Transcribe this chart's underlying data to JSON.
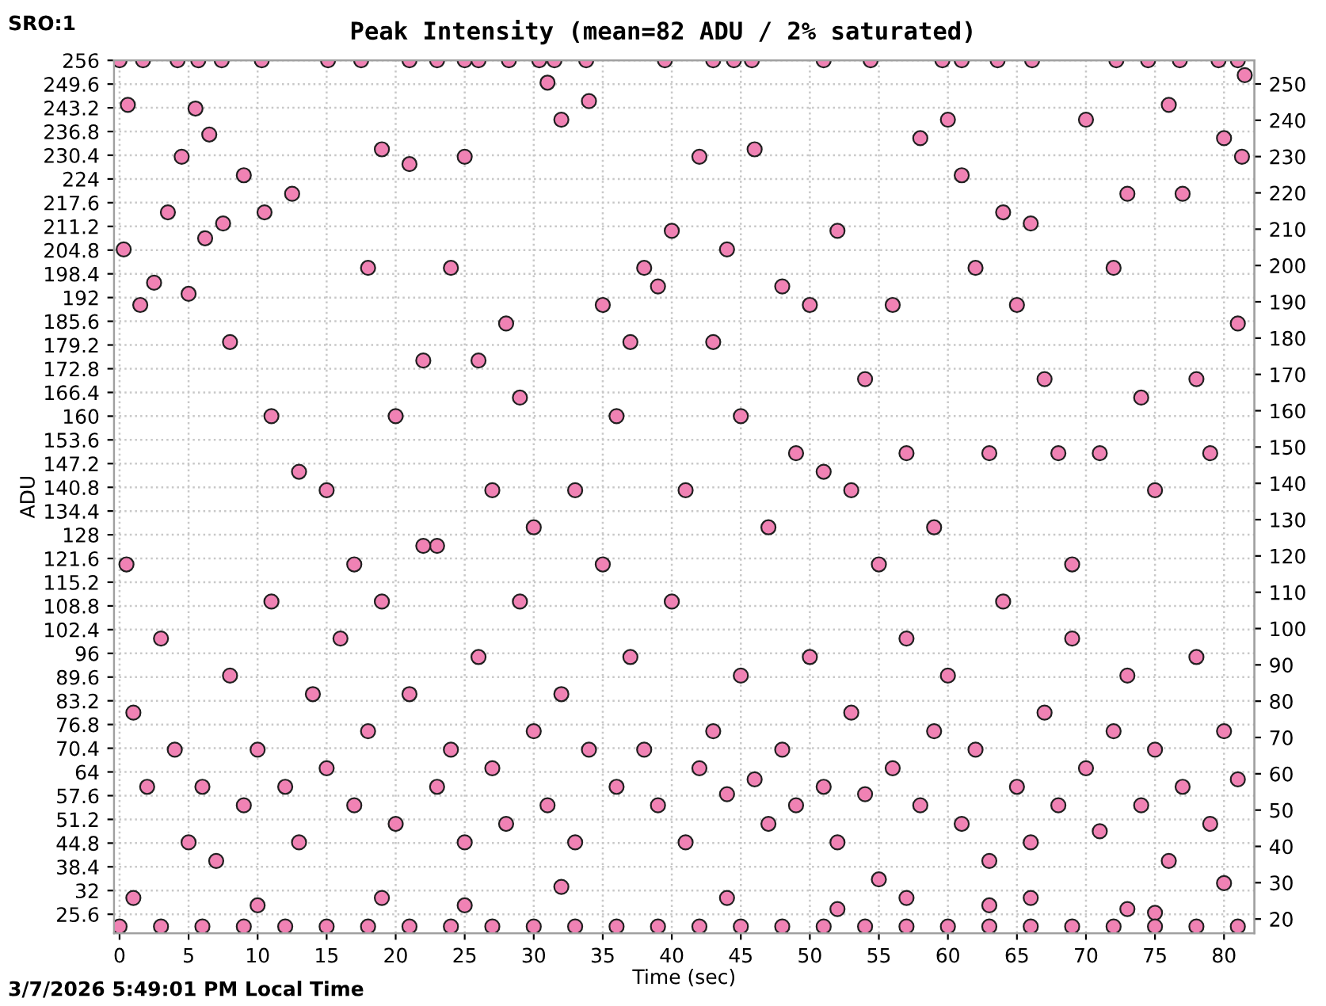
{
  "chart_data": {
    "type": "scatter",
    "title": "Peak Intensity (mean=82 ADU / 2% saturated)",
    "xlabel": "Time (sec)",
    "ylabel": "ADU",
    "annotations": [
      "SRO:1",
      "3/7/2026 5:49:01 PM Local Time"
    ],
    "xlim": [
      -0.4,
      82.2
    ],
    "xticks": [
      0,
      5,
      10,
      15,
      20,
      25,
      30,
      35,
      40,
      45,
      50,
      55,
      60,
      65,
      70,
      75,
      80
    ],
    "ylim": [
      20.5,
      256
    ],
    "yticks": [
      25.6,
      32,
      38.4,
      44.8,
      51.2,
      57.6,
      64,
      70.4,
      76.8,
      83.2,
      89.6,
      96,
      102.4,
      108.8,
      115.2,
      121.6,
      128,
      134.4,
      140.8,
      147.2,
      153.6,
      160,
      166.4,
      172.8,
      179.2,
      185.6,
      192,
      198.4,
      204.8,
      211.2,
      217.6,
      224,
      230.4,
      236.8,
      243.2,
      249.6,
      256
    ],
    "y2lim": [
      16.1,
      256.5
    ],
    "y2ticks": [
      20,
      30,
      40,
      50,
      60,
      70,
      80,
      90,
      100,
      110,
      120,
      130,
      140,
      150,
      160,
      170,
      180,
      190,
      200,
      210,
      220,
      230,
      240,
      250
    ],
    "grid": true,
    "marker": "circle",
    "series": [
      {
        "color": "#f082b4",
        "x": [
          0,
          1.7,
          4.2,
          5.7,
          7.4,
          10.3,
          15.1,
          17.5,
          21,
          23,
          25,
          26,
          28.2,
          30.4,
          31.5,
          33.8,
          39.5,
          43,
          44.5,
          45.8,
          51,
          54.4,
          59.6,
          61,
          63.6,
          66.1,
          72.2,
          74.5,
          76.8,
          79.6,
          81,
          81.5,
          0.3,
          0.6,
          1.5,
          2.5,
          3.5,
          4.5,
          5.5,
          6.5,
          7.5,
          9,
          10.5,
          12.5,
          5,
          6.2,
          8,
          11,
          13,
          15,
          17,
          18,
          19,
          20,
          21,
          22,
          23,
          24,
          25,
          26,
          27,
          28,
          29,
          30,
          31,
          32,
          33,
          34,
          35,
          36,
          37,
          38,
          39,
          40,
          41,
          42,
          43,
          44,
          45,
          46,
          47,
          48,
          49,
          50,
          51,
          52,
          53,
          54,
          55,
          56,
          57,
          58,
          59,
          60,
          61,
          62,
          63,
          64,
          65,
          66,
          67,
          68,
          69,
          70,
          71,
          72,
          73,
          74,
          75,
          76,
          77,
          78,
          79,
          80,
          81,
          81.3,
          0.5,
          1,
          2,
          3,
          4,
          5,
          6,
          7,
          8,
          9,
          10,
          11,
          12,
          13,
          14,
          15,
          16,
          17,
          18,
          19,
          20,
          21,
          22,
          23,
          24,
          25,
          26,
          27,
          28,
          29,
          30,
          31,
          32,
          33,
          34,
          35,
          36,
          37,
          38,
          39,
          40,
          41,
          42,
          43,
          44,
          45,
          46,
          47,
          48,
          49,
          50,
          51,
          52,
          53,
          54,
          55,
          56,
          57,
          58,
          59,
          60,
          61,
          62,
          63,
          64,
          65,
          66,
          67,
          68,
          69,
          70,
          71,
          72,
          73,
          74,
          75,
          76,
          77,
          78,
          79,
          80,
          81,
          1,
          10,
          19,
          25,
          32,
          44,
          52,
          57,
          63,
          66,
          73,
          75,
          80,
          0,
          3,
          6,
          9,
          12,
          15,
          18,
          21,
          24,
          27,
          30,
          33,
          36,
          39,
          42,
          45,
          48,
          51,
          54,
          57,
          60,
          63,
          66,
          69,
          72,
          75,
          78,
          81
        ],
        "values": [
          256,
          256,
          256,
          256,
          256,
          256,
          256,
          256,
          256,
          256,
          256,
          256,
          256,
          256,
          256,
          256,
          256,
          256,
          256,
          256,
          256,
          256,
          256,
          256,
          256,
          256,
          256,
          256,
          256,
          256,
          256,
          252,
          205,
          244,
          190,
          196,
          215,
          230,
          243,
          236,
          212,
          225,
          215,
          220,
          193,
          208,
          180,
          160,
          145,
          140,
          120,
          200,
          232,
          160,
          228,
          175,
          125,
          200,
          230,
          175,
          140,
          185,
          165,
          130,
          250,
          240,
          140,
          245,
          190,
          160,
          180,
          200,
          195,
          210,
          140,
          230,
          180,
          205,
          160,
          232,
          130,
          195,
          150,
          190,
          145,
          210,
          140,
          170,
          120,
          190,
          150,
          235,
          130,
          240,
          225,
          200,
          150,
          215,
          190,
          212,
          170,
          150,
          120,
          240,
          150,
          200,
          220,
          165,
          140,
          244,
          220,
          170,
          150,
          235,
          185,
          230,
          120,
          80,
          60,
          100,
          70,
          45,
          60,
          40,
          90,
          55,
          70,
          110,
          60,
          45,
          85,
          65,
          100,
          55,
          75,
          110,
          50,
          85,
          125,
          60,
          70,
          45,
          95,
          65,
          50,
          110,
          75,
          55,
          85,
          45,
          70,
          120,
          60,
          95,
          70,
          55,
          110,
          45,
          65,
          75,
          58,
          90,
          62,
          50,
          70,
          55,
          95,
          60,
          45,
          80,
          58,
          35,
          65,
          100,
          55,
          75,
          90,
          50,
          70,
          40,
          110,
          60,
          45,
          80,
          55,
          100,
          65,
          48,
          75,
          90,
          55,
          70,
          40,
          60,
          95,
          50,
          75,
          62,
          30,
          28,
          30,
          28,
          33,
          30,
          27,
          30,
          28,
          30,
          27,
          26,
          34,
          22.3,
          22.3,
          22.3,
          22.3,
          22.3,
          22.3,
          22.3,
          22.3,
          22.3,
          22.3,
          22.3,
          22.3,
          22.3,
          22.3,
          22.3,
          22.3,
          22.3,
          22.3,
          22.3,
          22.3,
          22.3,
          22.3,
          22.3,
          22.3,
          22.3,
          22.3,
          22.3,
          22.3
        ]
      }
    ]
  }
}
